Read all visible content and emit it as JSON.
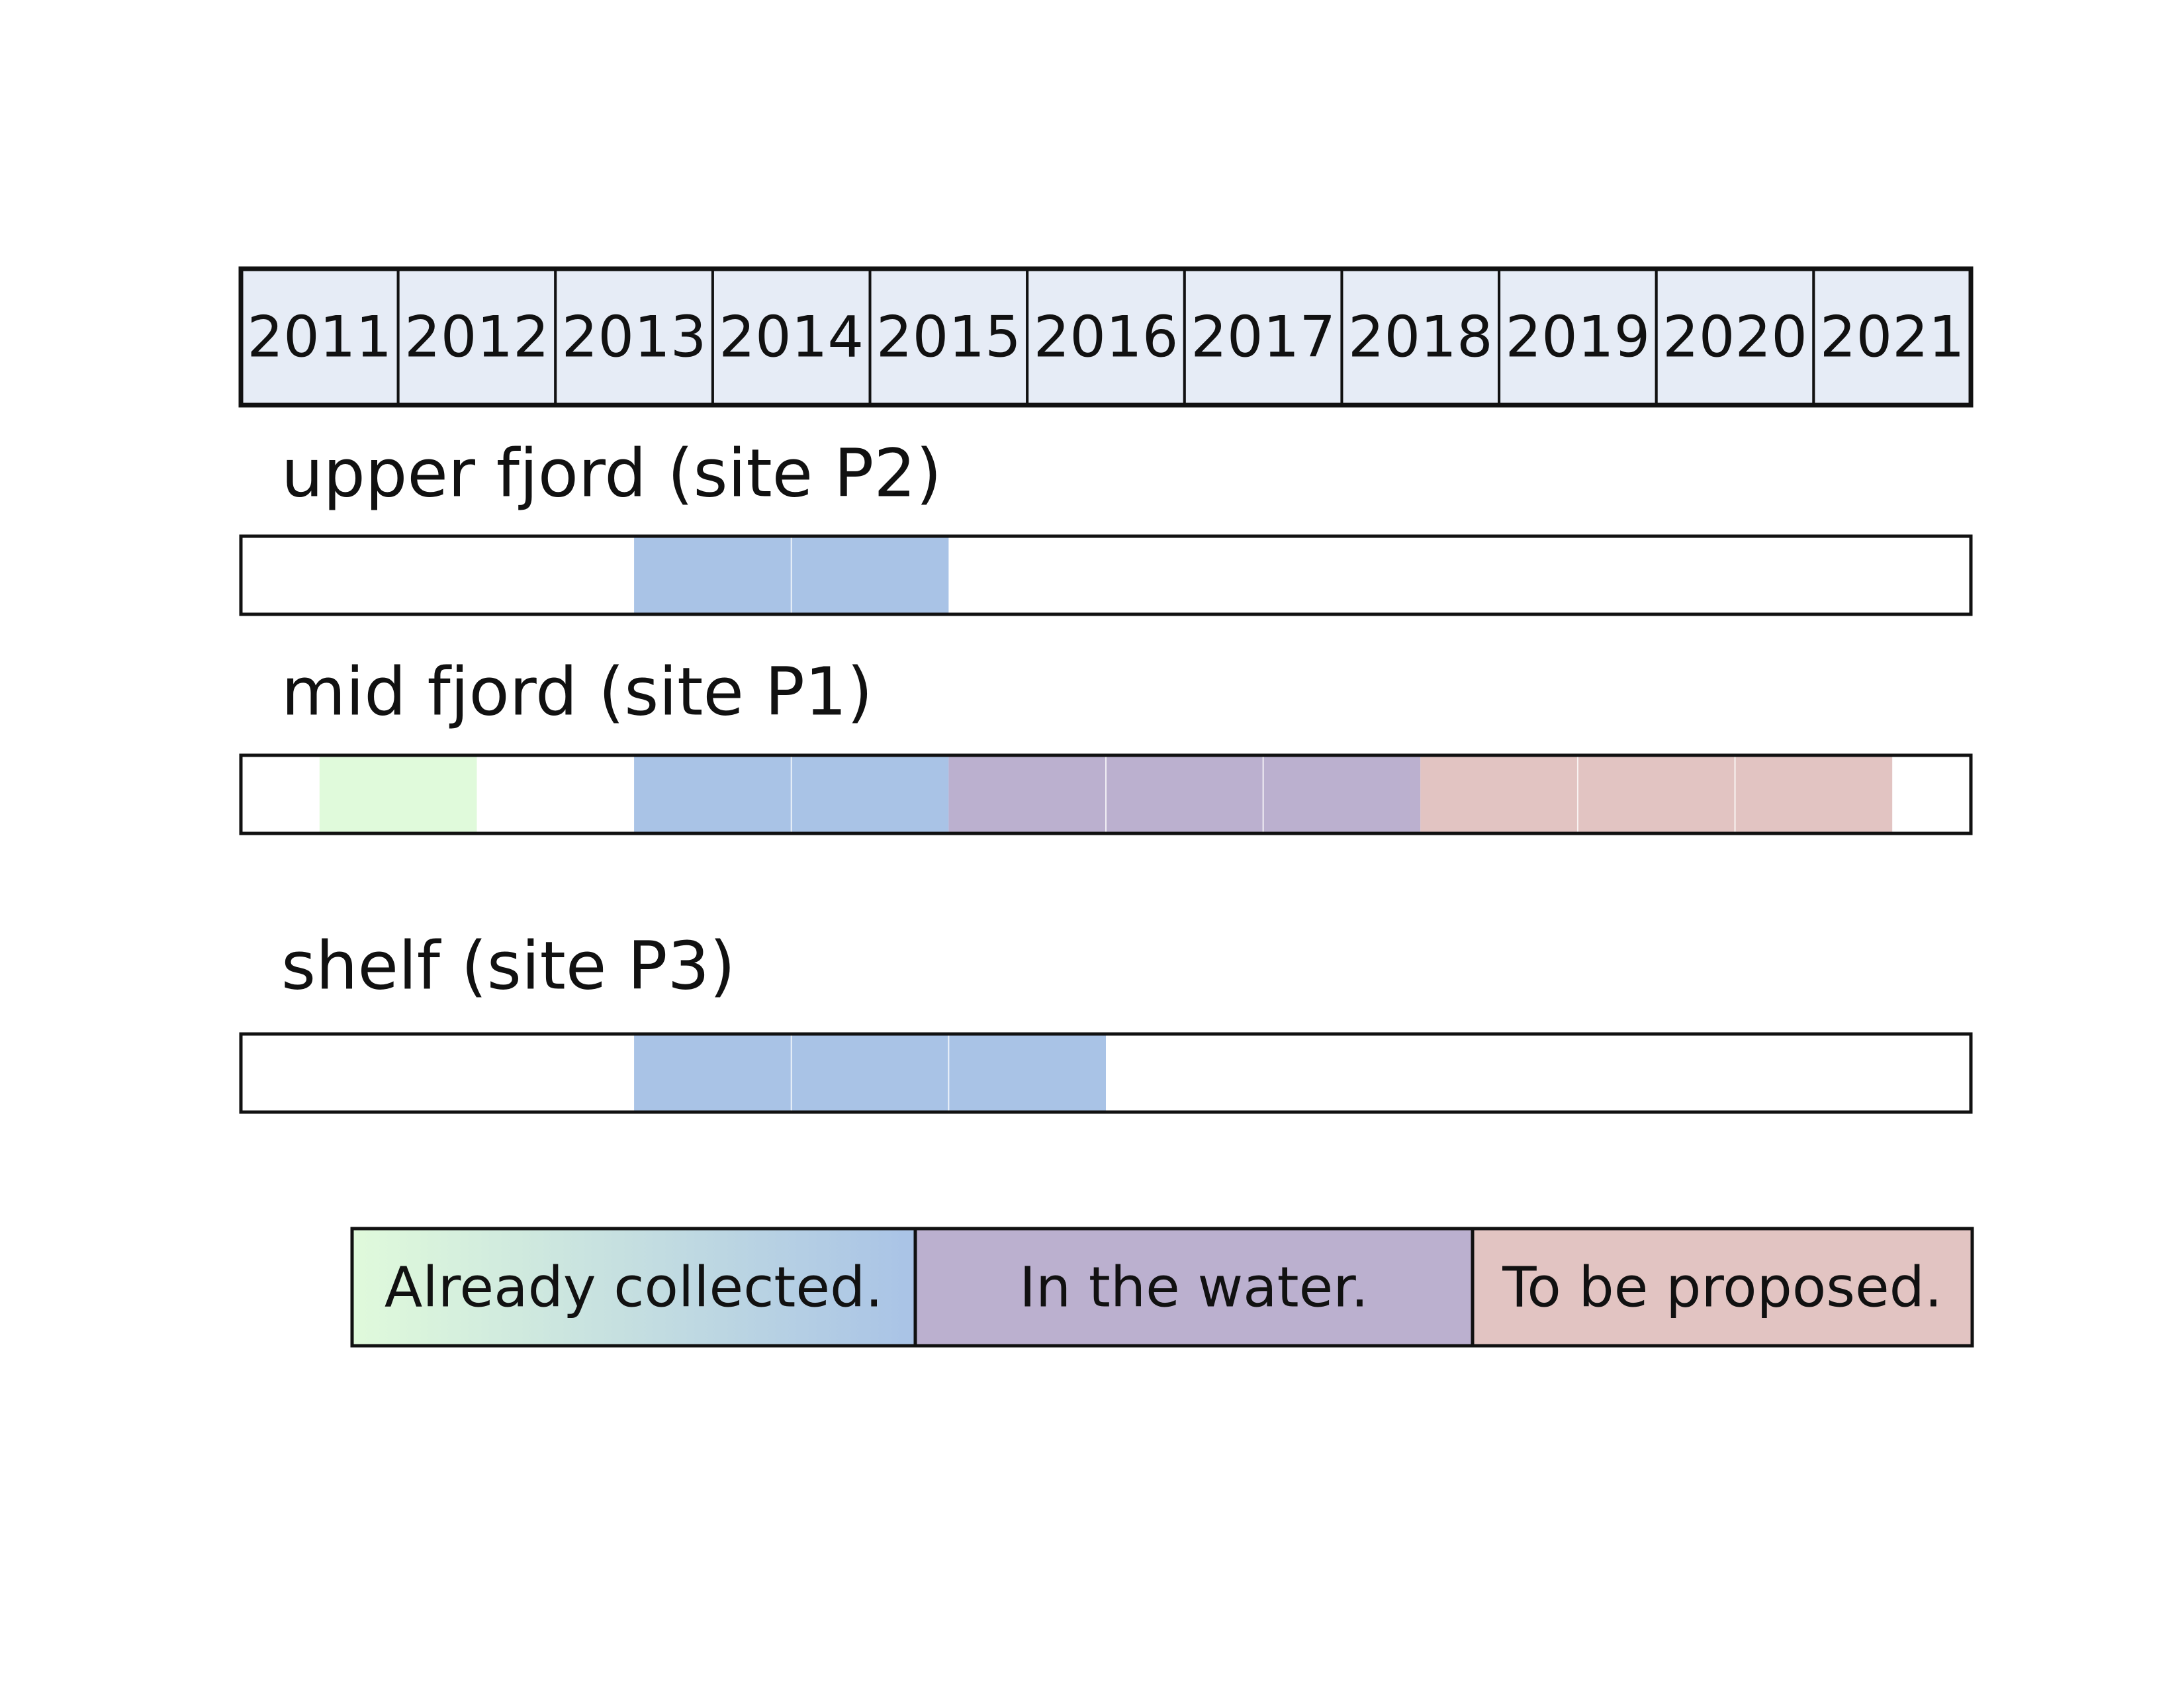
{
  "header": {
    "years": [
      "2011",
      "2012",
      "2013",
      "2014",
      "2015",
      "2016",
      "2017",
      "2018",
      "2019",
      "2020",
      "2021"
    ]
  },
  "rows": [
    {
      "label": "upper fjord (site P2)",
      "segments": [
        {
          "start": 2013.5,
          "end": 2015.5,
          "color": "#a9c3e6"
        }
      ]
    },
    {
      "label": "mid fjord (site P1)",
      "segments": [
        {
          "start": 2011.5,
          "end": 2012.5,
          "color": "#e0fadb"
        },
        {
          "start": 2013.5,
          "end": 2015.5,
          "color": "#a9c3e6"
        },
        {
          "start": 2015.5,
          "end": 2018.5,
          "color": "#bbb0cf"
        },
        {
          "start": 2018.5,
          "end": 2021.5,
          "color": "#e2c4c2"
        }
      ]
    },
    {
      "label": "shelf (site P3)",
      "segments": [
        {
          "start": 2013.5,
          "end": 2016.5,
          "color": "#a9c3e6"
        }
      ]
    }
  ],
  "legend": [
    {
      "label": "Already collected.",
      "colors": [
        "#e0fadb",
        "#a9c3e6"
      ]
    },
    {
      "label": "In the water.",
      "colors": [
        "#bbb0cf"
      ]
    },
    {
      "label": "To be proposed.",
      "colors": [
        "#e2c4c2"
      ]
    }
  ]
}
